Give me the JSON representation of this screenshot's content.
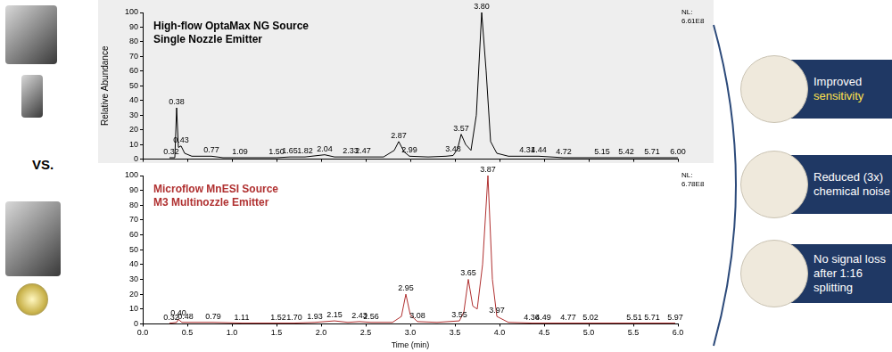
{
  "chart_data": [
    {
      "type": "line",
      "title": [
        "High-flow OptaMax NG Source",
        "Single Nozzle Emitter"
      ],
      "subtitle": [
        "NL:",
        "6.61E8"
      ],
      "ylabel": "Relative Abundance",
      "x": [
        0.3,
        0.32,
        0.36,
        0.38,
        0.4,
        0.43,
        0.47,
        0.55,
        0.77,
        0.9,
        1.09,
        1.5,
        1.65,
        1.82,
        2.04,
        2.15,
        2.33,
        2.47,
        2.7,
        2.82,
        2.87,
        2.93,
        2.99,
        3.2,
        3.4,
        3.48,
        3.53,
        3.57,
        3.62,
        3.68,
        3.74,
        3.8,
        3.85,
        3.9,
        3.97,
        4.1,
        4.31,
        4.44,
        4.72,
        5.15,
        5.42,
        5.71,
        6.0
      ],
      "values": [
        1,
        1,
        1,
        35,
        8,
        9,
        4,
        2,
        2,
        1,
        1,
        1,
        1.5,
        1.5,
        3,
        1.5,
        1.5,
        1.5,
        1.5,
        6,
        12,
        5,
        2,
        1.5,
        2,
        2.5,
        7,
        17,
        10,
        6,
        30,
        100,
        60,
        12,
        4,
        2,
        2,
        2,
        1,
        1,
        1,
        1,
        1
      ],
      "color": "#000000",
      "xlim": [
        0,
        6
      ],
      "xticks": [
        {
          "value": 0,
          "label": "0.0"
        },
        {
          "value": 0.5,
          "label": "0.5"
        },
        {
          "value": 1,
          "label": "1.0"
        },
        {
          "value": 1.5,
          "label": "1.5"
        },
        {
          "value": 2,
          "label": "2.0"
        },
        {
          "value": 2.5,
          "label": "2.5"
        },
        {
          "value": 3,
          "label": "3.0"
        },
        {
          "value": 3.5,
          "label": "3.5"
        },
        {
          "value": 4,
          "label": "4.0"
        },
        {
          "value": 4.5,
          "label": "4.5"
        },
        {
          "value": 5,
          "label": "5.0"
        },
        {
          "value": 5.5,
          "label": "5.5"
        },
        {
          "value": 6,
          "label": "6.0"
        }
      ],
      "ylim": [
        0,
        100
      ],
      "yticks": [
        0,
        10,
        20,
        30,
        40,
        50,
        60,
        70,
        80,
        90,
        100
      ],
      "grid": false,
      "tick_labels": "y",
      "annotations": [
        {
          "x": 0.32,
          "y": 1,
          "label": "0.32"
        },
        {
          "x": 0.38,
          "y": 35,
          "label": "0.38"
        },
        {
          "x": 0.43,
          "y": 9,
          "label": "0.43"
        },
        {
          "x": 0.77,
          "y": 2,
          "label": "0.77"
        },
        {
          "x": 1.09,
          "y": 1,
          "label": "1.09"
        },
        {
          "x": 1.5,
          "y": 1,
          "label": "1.50"
        },
        {
          "x": 1.65,
          "y": 1.5,
          "label": "1.65"
        },
        {
          "x": 1.82,
          "y": 1.5,
          "label": "1.82"
        },
        {
          "x": 2.04,
          "y": 3,
          "label": "2.04"
        },
        {
          "x": 2.33,
          "y": 1.5,
          "label": "2.33"
        },
        {
          "x": 2.47,
          "y": 1.5,
          "label": "2.47"
        },
        {
          "x": 2.87,
          "y": 12,
          "label": "2.87"
        },
        {
          "x": 2.99,
          "y": 2,
          "label": "2.99"
        },
        {
          "x": 3.48,
          "y": 2.5,
          "label": "3.48"
        },
        {
          "x": 3.57,
          "y": 17,
          "label": "3.57"
        },
        {
          "x": 3.8,
          "y": 100,
          "label": "3.80"
        },
        {
          "x": 4.31,
          "y": 2,
          "label": "4.31"
        },
        {
          "x": 4.44,
          "y": 2,
          "label": "4.44"
        },
        {
          "x": 4.72,
          "y": 1,
          "label": "4.72"
        },
        {
          "x": 5.15,
          "y": 1,
          "label": "5.15"
        },
        {
          "x": 5.42,
          "y": 1,
          "label": "5.42"
        },
        {
          "x": 5.71,
          "y": 1,
          "label": "5.71"
        },
        {
          "x": 6.0,
          "y": 1,
          "label": "6.00"
        }
      ]
    },
    {
      "type": "line",
      "title": [
        "Microflow MnESI Source",
        "M3 Multinozzle Emitter"
      ],
      "subtitle": [
        "NL:",
        "6.78E8"
      ],
      "xlabel": "Time (min)",
      "x": [
        0.3,
        0.32,
        0.38,
        0.4,
        0.44,
        0.48,
        0.79,
        1.11,
        1.52,
        1.7,
        1.93,
        2.15,
        2.3,
        2.43,
        2.56,
        2.8,
        2.9,
        2.95,
        3.0,
        3.08,
        3.3,
        3.55,
        3.6,
        3.65,
        3.7,
        3.75,
        3.81,
        3.87,
        3.92,
        3.97,
        4.1,
        4.36,
        4.49,
        4.77,
        5.02,
        5.51,
        5.71,
        5.97
      ],
      "values": [
        0.5,
        0.5,
        1,
        3,
        1,
        1,
        1,
        0.5,
        0.5,
        0.5,
        1,
        2,
        1,
        1.5,
        1,
        1,
        5,
        20,
        6,
        1.5,
        1,
        2,
        8,
        30,
        12,
        10,
        40,
        100,
        30,
        5,
        1,
        0.5,
        0.5,
        0.5,
        0.5,
        0.5,
        0.5,
        0.5
      ],
      "color": "#b03030",
      "xlim": [
        0,
        6
      ],
      "xticks": [
        {
          "value": 0,
          "label": "0.0"
        },
        {
          "value": 0.5,
          "label": "0.5"
        },
        {
          "value": 1,
          "label": "1.0"
        },
        {
          "value": 1.5,
          "label": "1.5"
        },
        {
          "value": 2,
          "label": "2.0"
        },
        {
          "value": 2.5,
          "label": "2.5"
        },
        {
          "value": 3,
          "label": "3.0"
        },
        {
          "value": 3.5,
          "label": "3.5"
        },
        {
          "value": 4,
          "label": "4.0"
        },
        {
          "value": 4.5,
          "label": "4.5"
        },
        {
          "value": 5,
          "label": "5.0"
        },
        {
          "value": 5.5,
          "label": "5.5"
        },
        {
          "value": 6,
          "label": "6.0"
        }
      ],
      "ylim": [
        0,
        100
      ],
      "yticks": [
        0,
        10,
        20,
        30,
        40,
        50,
        60,
        70,
        80,
        90,
        100
      ],
      "grid": false,
      "annotations": [
        {
          "x": 0.32,
          "y": 0.5,
          "label": "0.32"
        },
        {
          "x": 0.4,
          "y": 3,
          "label": "0.40"
        },
        {
          "x": 0.48,
          "y": 1,
          "label": "0.48"
        },
        {
          "x": 0.79,
          "y": 1,
          "label": "0.79"
        },
        {
          "x": 1.11,
          "y": 0.5,
          "label": "1.11"
        },
        {
          "x": 1.52,
          "y": 0.5,
          "label": "1.52"
        },
        {
          "x": 1.7,
          "y": 0.5,
          "label": "1.70"
        },
        {
          "x": 1.93,
          "y": 1,
          "label": "1.93"
        },
        {
          "x": 2.15,
          "y": 2,
          "label": "2.15"
        },
        {
          "x": 2.43,
          "y": 1.5,
          "label": "2.43"
        },
        {
          "x": 2.56,
          "y": 1,
          "label": "2.56"
        },
        {
          "x": 2.95,
          "y": 20,
          "label": "2.95"
        },
        {
          "x": 3.08,
          "y": 1.5,
          "label": "3.08"
        },
        {
          "x": 3.55,
          "y": 2,
          "label": "3.55"
        },
        {
          "x": 3.65,
          "y": 30,
          "label": "3.65"
        },
        {
          "x": 3.87,
          "y": 100,
          "label": "3.87"
        },
        {
          "x": 3.97,
          "y": 5,
          "label": "3.97"
        },
        {
          "x": 4.36,
          "y": 0.5,
          "label": "4.36"
        },
        {
          "x": 4.49,
          "y": 0.5,
          "label": "4.49"
        },
        {
          "x": 4.77,
          "y": 0.5,
          "label": "4.77"
        },
        {
          "x": 5.02,
          "y": 0.5,
          "label": "5.02"
        },
        {
          "x": 5.51,
          "y": 0.5,
          "label": "5.51"
        },
        {
          "x": 5.71,
          "y": 0.5,
          "label": "5.71"
        },
        {
          "x": 5.97,
          "y": 0.5,
          "label": "5.97"
        }
      ]
    }
  ],
  "vs_label": "VS.",
  "callouts": [
    {
      "text": "Improved",
      "highlight": "sensitivity"
    },
    {
      "text": "Reduced (3x) chemical noise"
    },
    {
      "text": "No signal loss after 1:16 splitting"
    }
  ]
}
